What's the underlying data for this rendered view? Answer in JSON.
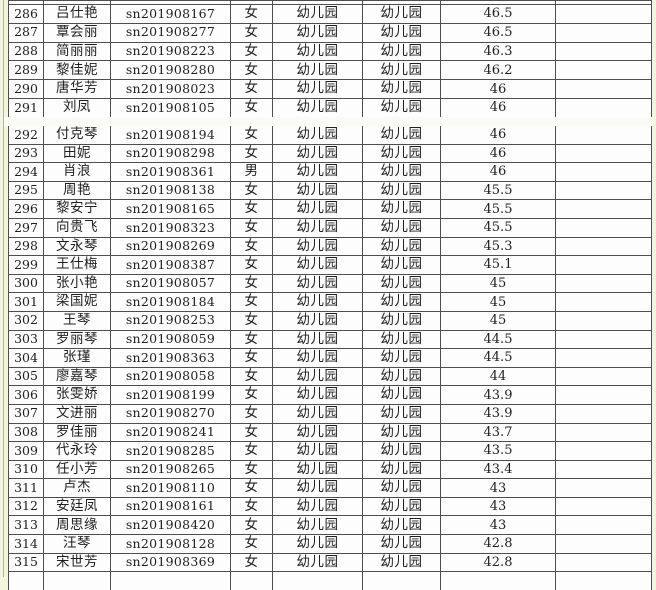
{
  "colors": {
    "page_background": "#f4f5df",
    "cell_background": "#fdfdfd",
    "table_border": "#4e4e4e",
    "text": "#1f1f1f",
    "page_break_gap": "#fbfbf6",
    "margin_line": "#b3b3a4"
  },
  "table": {
    "sections": [
      {
        "rows": [
          [
            "286",
            "吕仕艳",
            "sn201908167",
            "女",
            "幼儿园",
            "幼儿园",
            "46.5",
            ""
          ],
          [
            "287",
            "覃会丽",
            "sn201908277",
            "女",
            "幼儿园",
            "幼儿园",
            "46.5",
            ""
          ],
          [
            "288",
            "简丽丽",
            "sn201908223",
            "女",
            "幼儿园",
            "幼儿园",
            "46.3",
            ""
          ],
          [
            "289",
            "黎佳妮",
            "sn201908280",
            "女",
            "幼儿园",
            "幼儿园",
            "46.2",
            ""
          ],
          [
            "290",
            "唐华芳",
            "sn201908023",
            "女",
            "幼儿园",
            "幼儿园",
            "46",
            ""
          ],
          [
            "291",
            "刘凤",
            "sn201908105",
            "女",
            "幼儿园",
            "幼儿园",
            "46",
            ""
          ]
        ]
      },
      {
        "rows": [
          [
            "292",
            "付克琴",
            "sn201908194",
            "女",
            "幼儿园",
            "幼儿园",
            "46",
            ""
          ],
          [
            "293",
            "田妮",
            "sn201908298",
            "女",
            "幼儿园",
            "幼儿园",
            "46",
            ""
          ],
          [
            "294",
            "肖浪",
            "sn201908361",
            "男",
            "幼儿园",
            "幼儿园",
            "46",
            ""
          ],
          [
            "295",
            "周艳",
            "sn201908138",
            "女",
            "幼儿园",
            "幼儿园",
            "45.5",
            ""
          ],
          [
            "296",
            "黎安宁",
            "sn201908165",
            "女",
            "幼儿园",
            "幼儿园",
            "45.5",
            ""
          ],
          [
            "297",
            "向贵飞",
            "sn201908323",
            "女",
            "幼儿园",
            "幼儿园",
            "45.5",
            ""
          ],
          [
            "298",
            "文永琴",
            "sn201908269",
            "女",
            "幼儿园",
            "幼儿园",
            "45.3",
            ""
          ],
          [
            "299",
            "王仕梅",
            "sn201908387",
            "女",
            "幼儿园",
            "幼儿园",
            "45.1",
            ""
          ],
          [
            "300",
            "张小艳",
            "sn201908057",
            "女",
            "幼儿园",
            "幼儿园",
            "45",
            ""
          ],
          [
            "301",
            "梁国妮",
            "sn201908184",
            "女",
            "幼儿园",
            "幼儿园",
            "45",
            ""
          ],
          [
            "302",
            "王琴",
            "sn201908253",
            "女",
            "幼儿园",
            "幼儿园",
            "45",
            ""
          ],
          [
            "303",
            "罗丽琴",
            "sn201908059",
            "女",
            "幼儿园",
            "幼儿园",
            "44.5",
            ""
          ],
          [
            "304",
            "张瑾",
            "sn201908363",
            "女",
            "幼儿园",
            "幼儿园",
            "44.5",
            ""
          ],
          [
            "305",
            "廖嘉琴",
            "sn201908058",
            "女",
            "幼儿园",
            "幼儿园",
            "44",
            ""
          ],
          [
            "306",
            "张雯娇",
            "sn201908199",
            "女",
            "幼儿园",
            "幼儿园",
            "43.9",
            ""
          ],
          [
            "307",
            "文进丽",
            "sn201908270",
            "女",
            "幼儿园",
            "幼儿园",
            "43.9",
            ""
          ],
          [
            "308",
            "罗佳丽",
            "sn201908241",
            "女",
            "幼儿园",
            "幼儿园",
            "43.7",
            ""
          ],
          [
            "309",
            "代永玲",
            "sn201908285",
            "女",
            "幼儿园",
            "幼儿园",
            "43.5",
            ""
          ],
          [
            "310",
            "任小芳",
            "sn201908265",
            "女",
            "幼儿园",
            "幼儿园",
            "43.4",
            ""
          ],
          [
            "311",
            "卢杰",
            "sn201908110",
            "女",
            "幼儿园",
            "幼儿园",
            "43",
            ""
          ],
          [
            "312",
            "安廷凤",
            "sn201908161",
            "女",
            "幼儿园",
            "幼儿园",
            "43",
            ""
          ],
          [
            "313",
            "周思缘",
            "sn201908420",
            "女",
            "幼儿园",
            "幼儿园",
            "43",
            ""
          ],
          [
            "314",
            "汪琴",
            "sn201908128",
            "女",
            "幼儿园",
            "幼儿园",
            "42.8",
            ""
          ],
          [
            "315",
            "宋世芳",
            "sn201908369",
            "女",
            "幼儿园",
            "幼儿园",
            "42.8",
            ""
          ]
        ]
      }
    ]
  }
}
